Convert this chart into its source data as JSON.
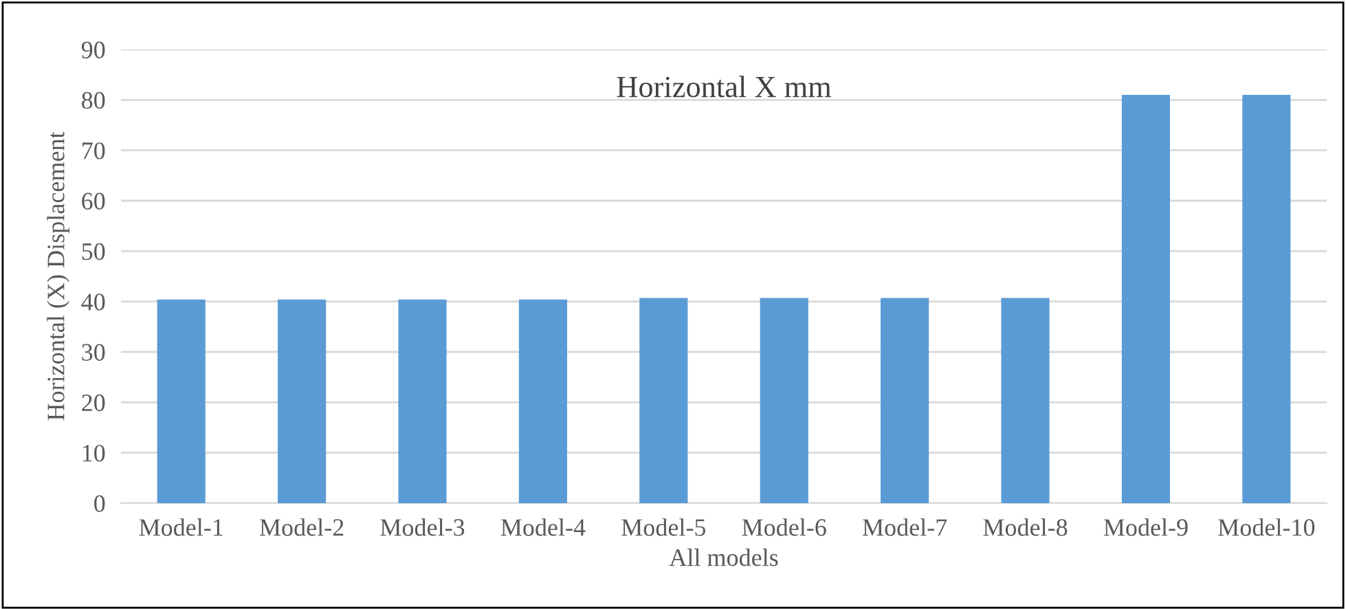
{
  "chart_data": {
    "type": "bar",
    "title": "Horizontal X mm",
    "xlabel": "All models",
    "ylabel": "Horizontal (X) Displacement",
    "categories": [
      "Model-1",
      "Model-2",
      "Model-3",
      "Model-4",
      "Model-5",
      "Model-6",
      "Model-7",
      "Model-8",
      "Model-9",
      "Model-10"
    ],
    "values": [
      40.4,
      40.4,
      40.4,
      40.4,
      40.7,
      40.7,
      40.7,
      40.7,
      81,
      81
    ],
    "color": "#5b9bd5",
    "ylim": [
      0,
      90
    ],
    "yticks": [
      0,
      10,
      20,
      30,
      40,
      50,
      60,
      70,
      80,
      90
    ],
    "grid": "y"
  }
}
